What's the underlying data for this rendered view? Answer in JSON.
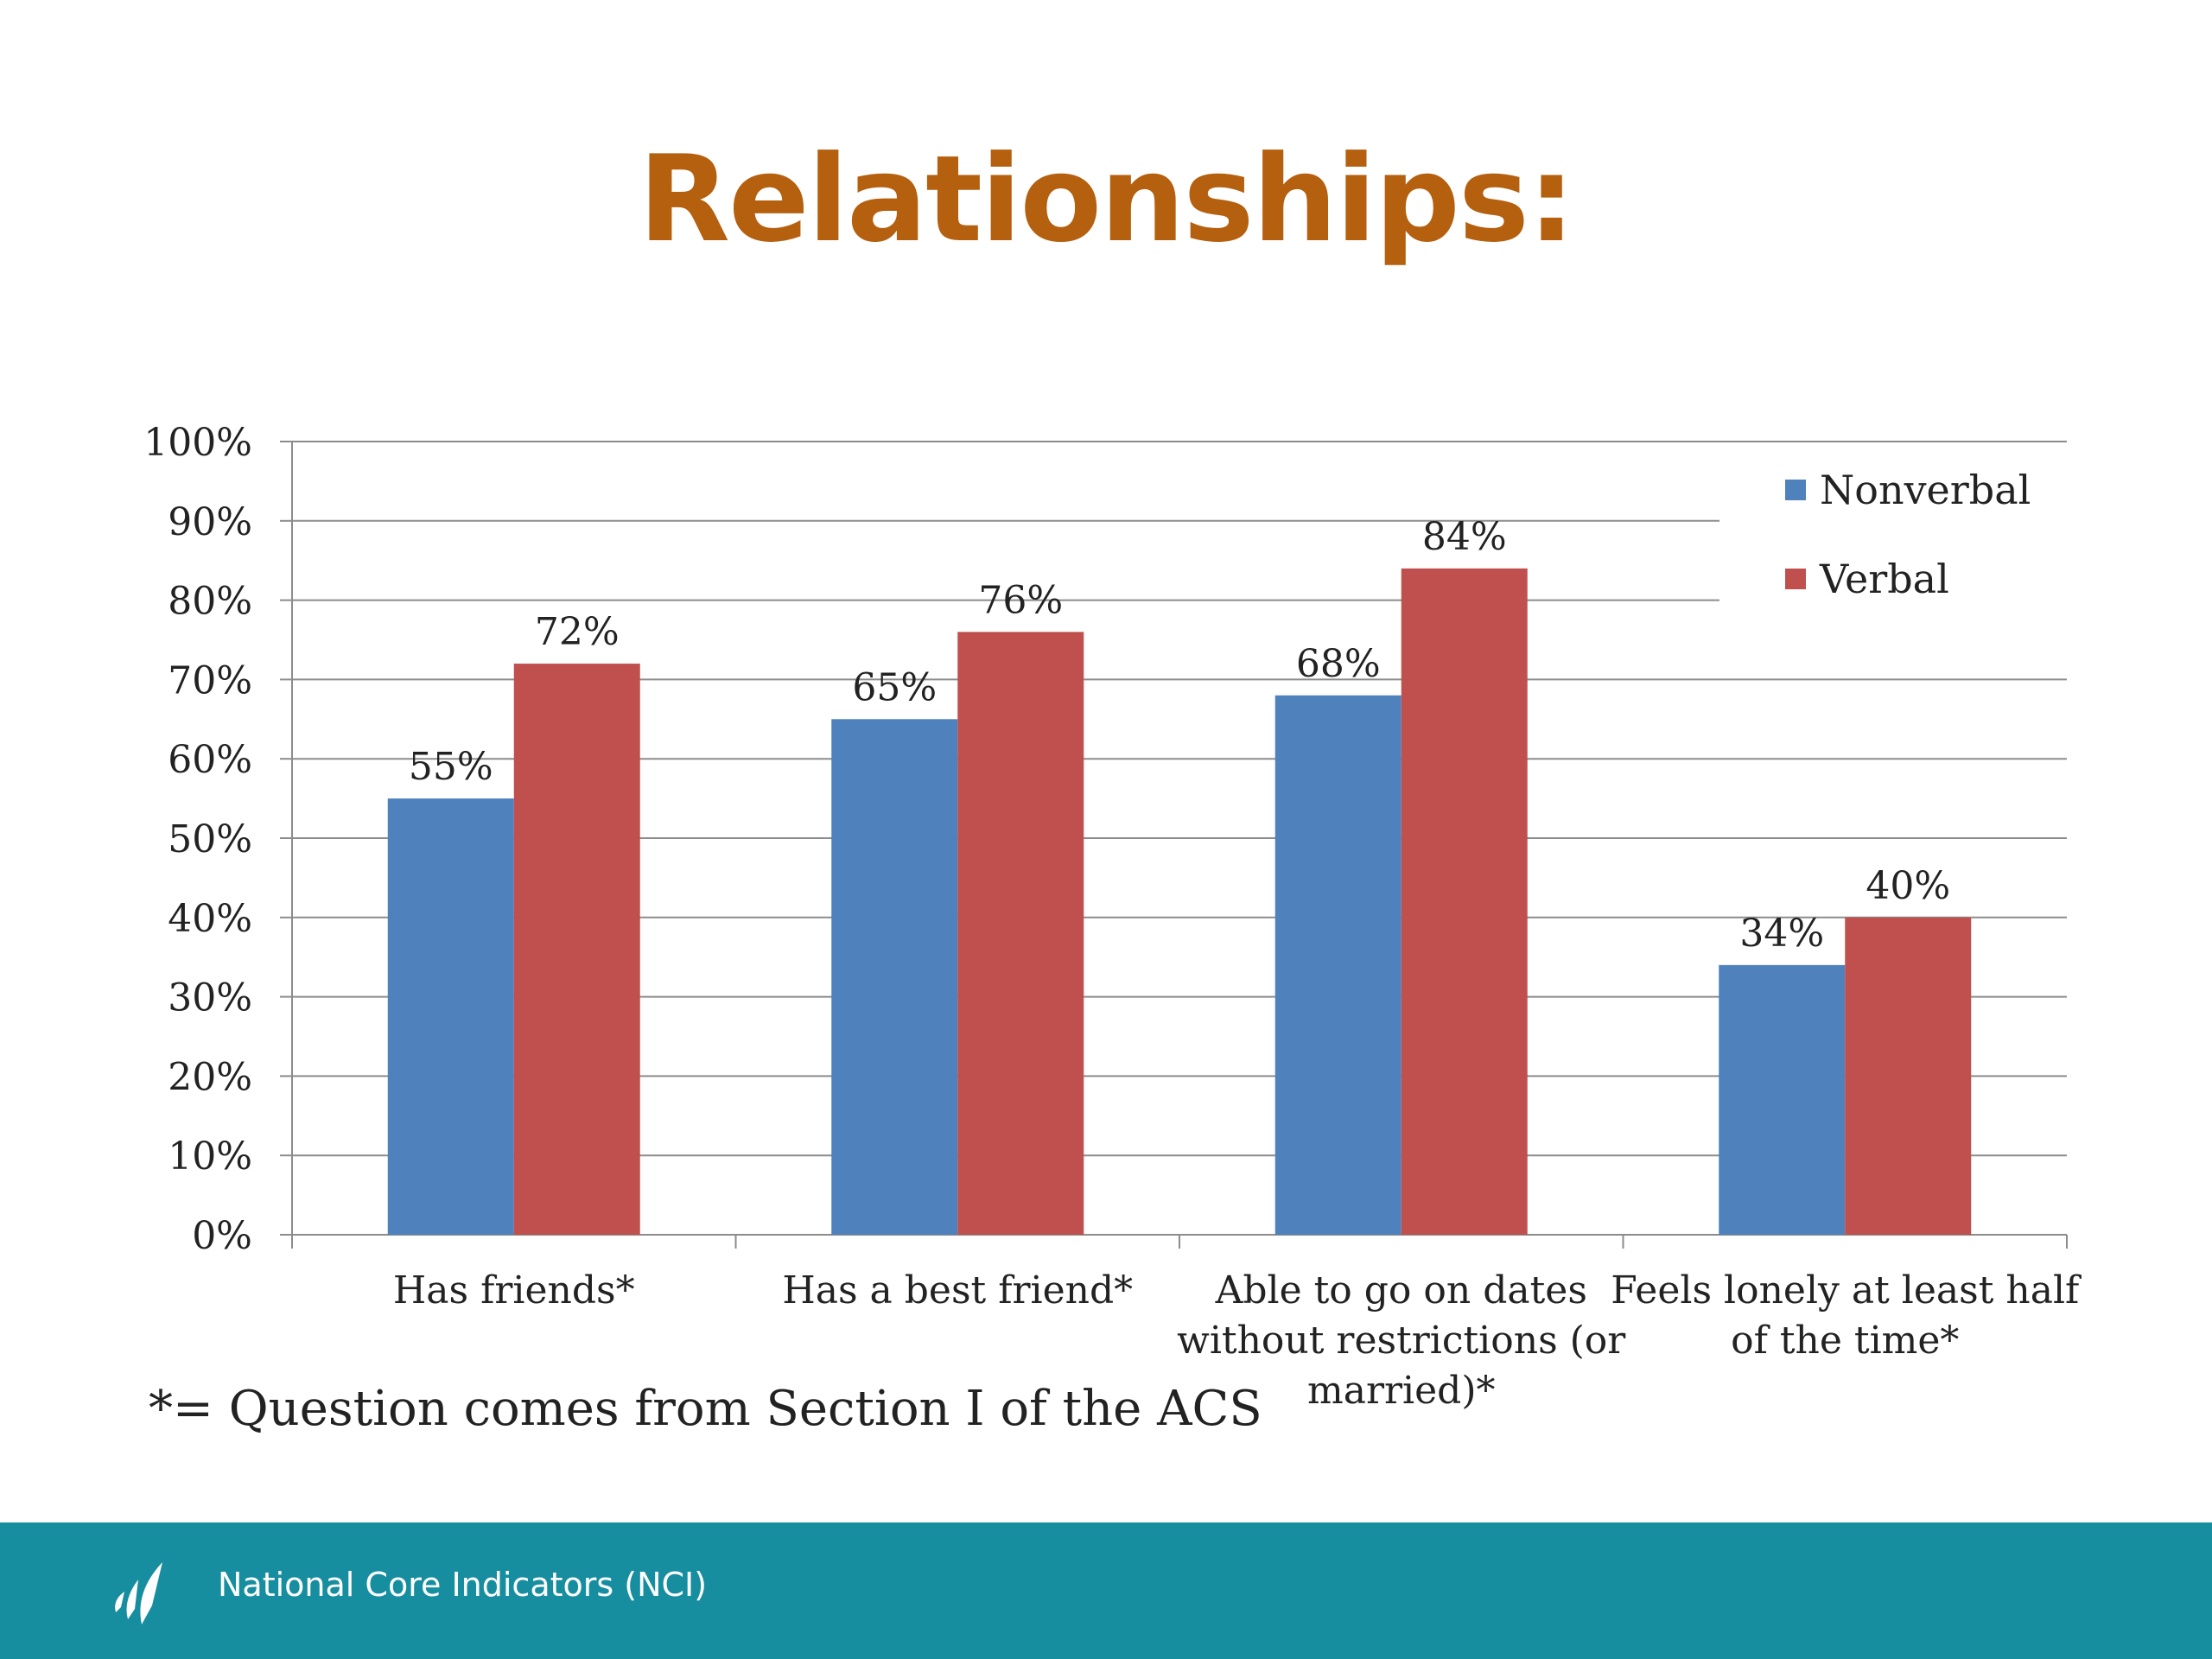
{
  "slide": {
    "title": "Relationships:",
    "footnote": "*= Question comes from Section I of the ACS"
  },
  "footer": {
    "text": "National Core Indicators (NCI)",
    "logo_icon": "nci-logo-icon",
    "background": "#178ea0"
  },
  "colors": {
    "title": "#b5600f",
    "nonverbal": "#4f81bd",
    "verbal": "#c0504d"
  },
  "chart_data": {
    "type": "bar",
    "title": "",
    "xlabel": "",
    "ylabel": "",
    "ylim": [
      0,
      100
    ],
    "yticks": [
      0,
      10,
      20,
      30,
      40,
      50,
      60,
      70,
      80,
      90,
      100
    ],
    "ytick_labels": [
      "0%",
      "10%",
      "20%",
      "30%",
      "40%",
      "50%",
      "60%",
      "70%",
      "80%",
      "90%",
      "100%"
    ],
    "grid": true,
    "legend_position": "top-right",
    "categories": [
      [
        "Has friends*"
      ],
      [
        "Has a best friend*"
      ],
      [
        "Able to go on dates",
        "without restrictions (or",
        "married)*"
      ],
      [
        "Feels lonely at least half",
        "of the time*"
      ]
    ],
    "series": [
      {
        "name": "Nonverbal",
        "color": "#4f81bd",
        "values": [
          55,
          65,
          68,
          34
        ],
        "labels": [
          "55%",
          "65%",
          "68%",
          "34%"
        ]
      },
      {
        "name": "Verbal",
        "color": "#c0504d",
        "values": [
          72,
          76,
          84,
          40
        ],
        "labels": [
          "72%",
          "76%",
          "84%",
          "40%"
        ]
      }
    ]
  }
}
